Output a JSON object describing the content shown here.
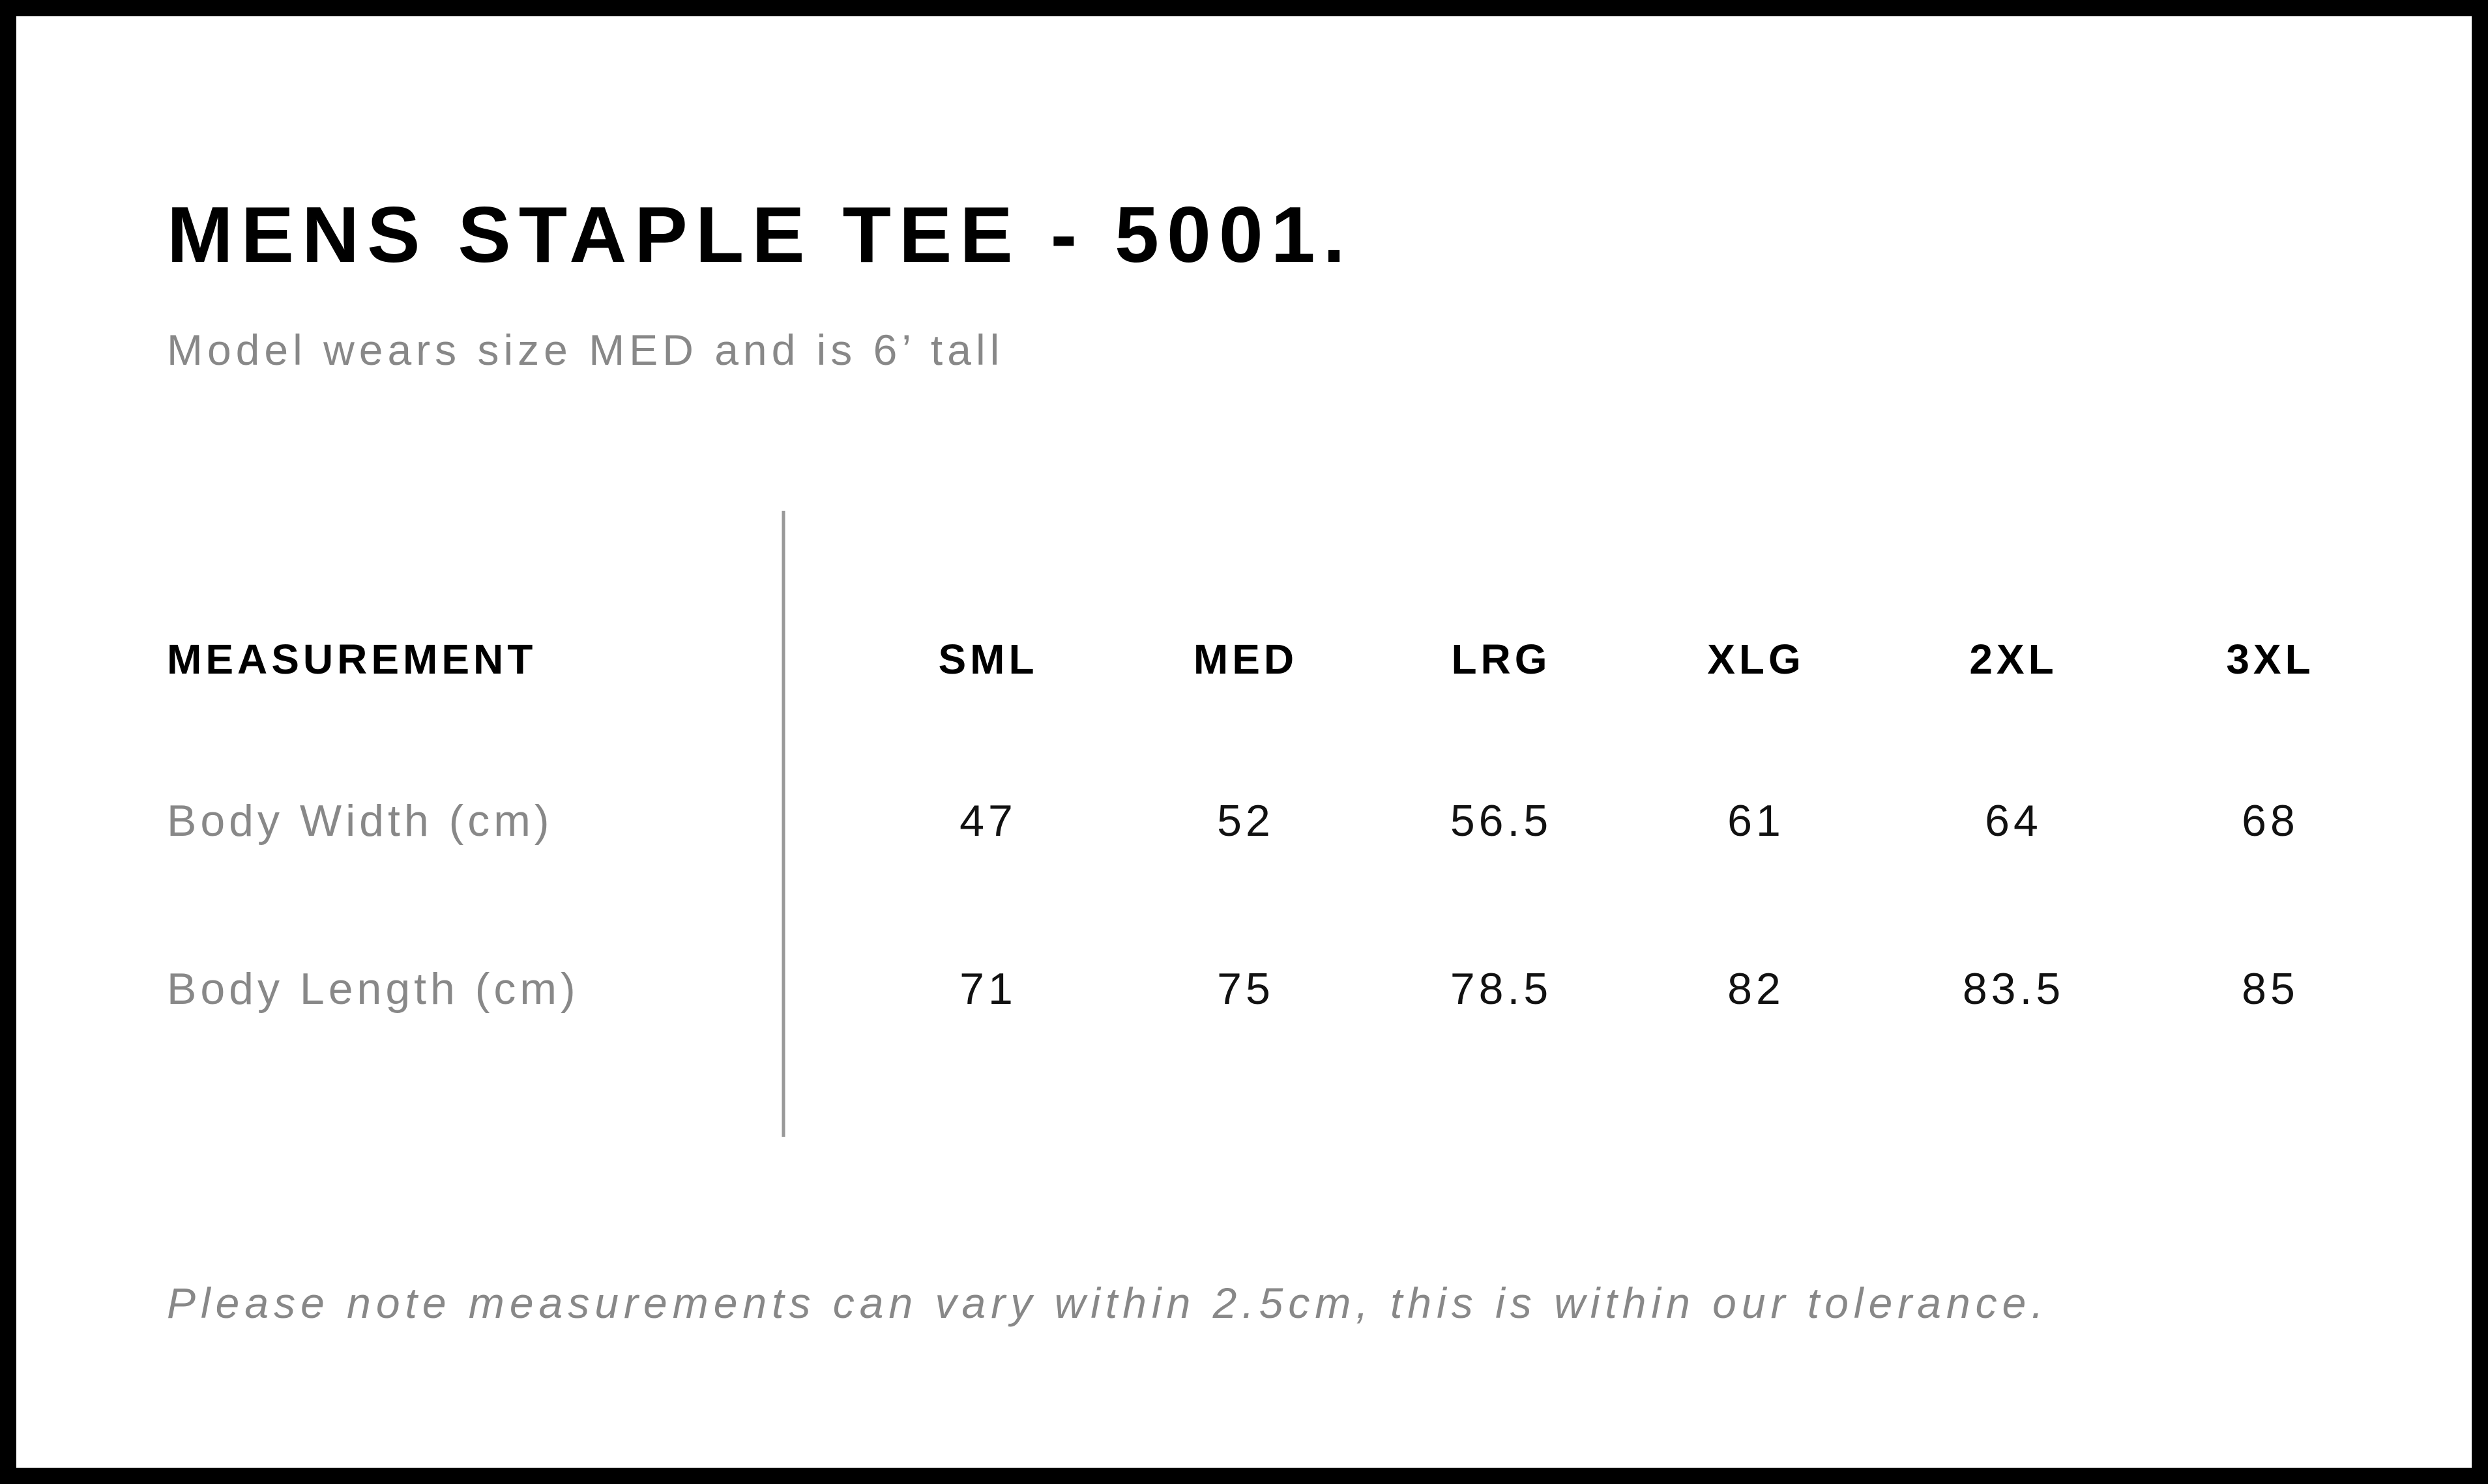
{
  "title": "MENS STAPLE TEE - 5001.",
  "subtitle": "Model wears size MED and is 6’ tall",
  "table": {
    "header": [
      "MEASUREMENT",
      "SML",
      "MED",
      "LRG",
      "XLG",
      "2XL",
      "3XL"
    ],
    "rows": [
      [
        "Body Width (cm)",
        47,
        52,
        56.5,
        61,
        64,
        68
      ],
      [
        "Body Length (cm)",
        71,
        75,
        78.5,
        82,
        83.5,
        85
      ]
    ]
  },
  "footnote": "Please note measurements can vary within 2.5cm, this is within our tolerance."
}
